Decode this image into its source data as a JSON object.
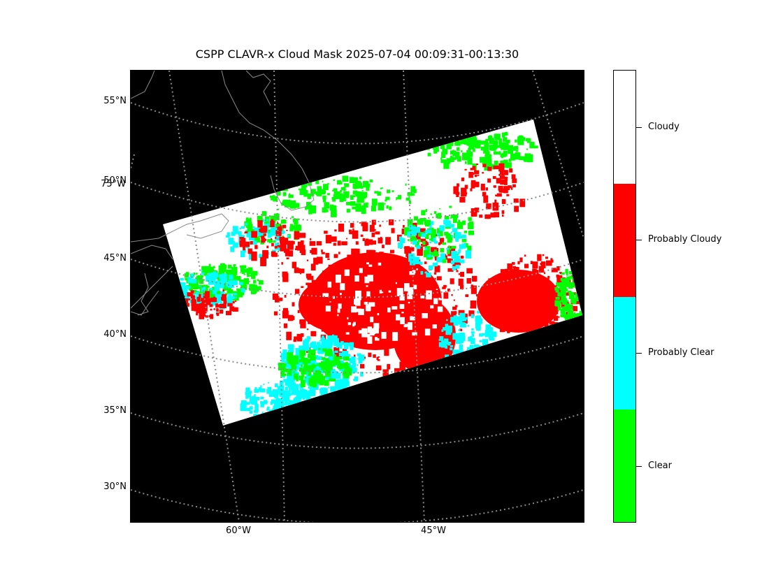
{
  "title": "CSPP CLAVR-x Cloud Mask 2025-07-04 00:09:31-00:13:30",
  "map": {
    "lat_labels": [
      "55°N",
      "50°N",
      "45°N",
      "40°N",
      "35°N",
      "30°N"
    ],
    "lon_labels": [
      "60°W",
      "45°W"
    ],
    "overlap_label": "75°W",
    "colors": {
      "background": "#000000",
      "gridlines": "#8a8a8a",
      "coastline": "#8a8a8a",
      "clear": "#00ff00",
      "probably_clear": "#00ffff",
      "probably_cloudy": "#ff0000",
      "cloudy": "#ffffff"
    }
  },
  "colorbar": {
    "categories": [
      {
        "label": "Cloudy",
        "color": "#ffffff"
      },
      {
        "label": "Probably Cloudy",
        "color": "#ff0000"
      },
      {
        "label": "Probably Clear",
        "color": "#00ffff"
      },
      {
        "label": "Clear",
        "color": "#00ff00"
      }
    ]
  }
}
